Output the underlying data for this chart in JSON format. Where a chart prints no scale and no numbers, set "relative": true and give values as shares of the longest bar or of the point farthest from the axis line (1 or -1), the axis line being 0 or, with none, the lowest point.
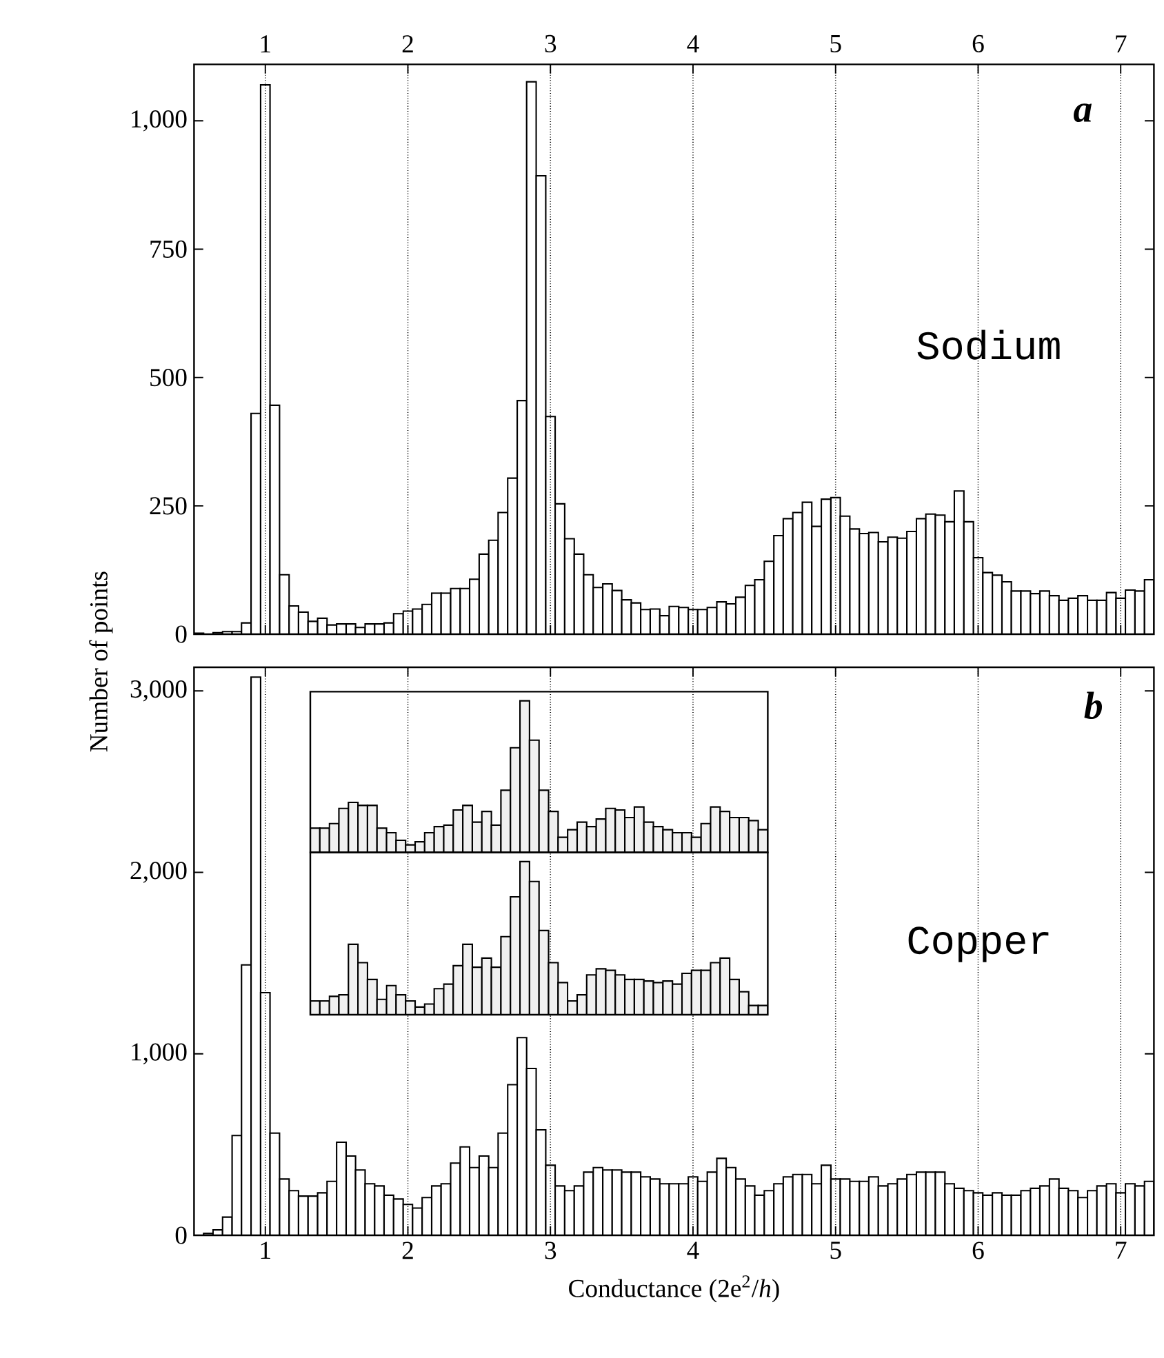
{
  "chart_data": [
    {
      "type": "histogram",
      "color": "#ffffff",
      "xlim": [
        0.5,
        7.233
      ],
      "ylim": [
        0,
        1110
      ],
      "xticks": [
        1,
        2,
        3,
        4,
        5,
        6,
        7
      ],
      "x2lim": [
        0.5,
        7.233
      ],
      "x2ticks": [
        1,
        2,
        3,
        4,
        5,
        6,
        7
      ],
      "tick_labels": "y",
      "grid": "x",
      "yticks": [
        0,
        250,
        500,
        750,
        {
          "value": 1000,
          "label": "1,000"
        }
      ],
      "annotations": [
        "a",
        "Sodium"
      ],
      "bins": [
        0.5,
        0.567,
        0.633,
        0.7,
        0.767,
        0.833,
        0.9,
        0.967,
        1.033,
        1.1,
        1.167,
        1.233,
        1.3,
        1.367,
        1.433,
        1.5,
        1.567,
        1.633,
        1.7,
        1.767,
        1.833,
        1.9,
        1.967,
        2.033,
        2.1,
        2.167,
        2.233,
        2.3,
        2.367,
        2.433,
        2.5,
        2.567,
        2.633,
        2.7,
        2.767,
        2.833,
        2.9,
        2.967,
        3.033,
        3.1,
        3.167,
        3.233,
        3.3,
        3.367,
        3.433,
        3.5,
        3.567,
        3.633,
        3.7,
        3.767,
        3.833,
        3.9,
        3.967,
        4.033,
        4.1,
        4.167,
        4.233,
        4.3,
        4.367,
        4.433,
        4.5,
        4.567,
        4.633,
        4.7,
        4.767,
        4.833,
        4.9,
        4.967,
        5.033,
        5.1,
        5.167,
        5.233,
        5.3,
        5.367,
        5.433,
        5.5,
        5.567,
        5.633,
        5.7,
        5.767,
        5.833,
        5.9,
        5.967,
        6.033,
        6.1,
        6.167,
        6.233,
        6.3,
        6.367,
        6.433,
        6.5,
        6.567,
        6.633,
        6.7,
        6.767,
        6.833,
        6.9,
        6.967,
        7.033,
        7.1,
        7.167,
        7.233
      ],
      "values": [
        2,
        null,
        3,
        5,
        5,
        22,
        430,
        1070,
        446,
        116,
        55,
        43,
        25,
        31,
        18,
        20,
        20,
        13,
        20,
        20,
        22,
        40,
        45,
        49,
        58,
        80,
        80,
        89,
        89,
        107,
        156,
        183,
        237,
        304,
        455,
        1076,
        893,
        424,
        254,
        186,
        156,
        116,
        91,
        98,
        85,
        67,
        61,
        48,
        49,
        36,
        54,
        52,
        48,
        48,
        52,
        63,
        59,
        72,
        95,
        106,
        142,
        192,
        225,
        237,
        257,
        210,
        263,
        266,
        230,
        205,
        196,
        198,
        180,
        189,
        187,
        200,
        225,
        234,
        232,
        219,
        279,
        219,
        149,
        120,
        115,
        102,
        84,
        84,
        79,
        84,
        75,
        66,
        70,
        75,
        66,
        66,
        81,
        70,
        86,
        84,
        106
      ]
    },
    {
      "type": "histogram",
      "color": "#ffffff",
      "xlim": [
        0.5,
        7.233
      ],
      "ylim": [
        0,
        3130
      ],
      "xticks": [
        1,
        2,
        3,
        4,
        5,
        6,
        7
      ],
      "grid": "x",
      "yticks": [
        0,
        {
          "value": 1000,
          "label": "1,000"
        },
        {
          "value": 2000,
          "label": "2,000"
        },
        {
          "value": 3000,
          "label": "3,000"
        }
      ],
      "xlabel": "Conductance (2e$^{2}$/*h*)",
      "ylabel": "Number of points",
      "annotations": [
        "b",
        "Copper"
      ],
      "bins": [
        0.5,
        0.567,
        0.633,
        0.7,
        0.767,
        0.833,
        0.9,
        0.967,
        1.033,
        1.1,
        1.167,
        1.233,
        1.3,
        1.367,
        1.433,
        1.5,
        1.567,
        1.633,
        1.7,
        1.767,
        1.833,
        1.9,
        1.967,
        2.033,
        2.1,
        2.167,
        2.233,
        2.3,
        2.367,
        2.433,
        2.5,
        2.567,
        2.633,
        2.7,
        2.767,
        2.833,
        2.9,
        2.967,
        3.033,
        3.1,
        3.167,
        3.233,
        3.3,
        3.367,
        3.433,
        3.5,
        3.567,
        3.633,
        3.7,
        3.767,
        3.833,
        3.9,
        3.967,
        4.033,
        4.1,
        4.167,
        4.233,
        4.3,
        4.367,
        4.433,
        4.5,
        4.567,
        4.633,
        4.7,
        4.767,
        4.833,
        4.9,
        4.967,
        5.033,
        5.1,
        5.167,
        5.233,
        5.3,
        5.367,
        5.433,
        5.5,
        5.567,
        5.633,
        5.7,
        5.767,
        5.833,
        5.9,
        5.967,
        6.033,
        6.1,
        6.167,
        6.233,
        6.3,
        6.367,
        6.433,
        6.5,
        6.567,
        6.633,
        6.7,
        6.767,
        6.833,
        6.9,
        6.967,
        7.033,
        7.1,
        7.167,
        7.233
      ],
      "values": [
        null,
        10,
        30,
        100,
        550,
        1490,
        3076,
        1337,
        563,
        310,
        246,
        216,
        216,
        234,
        297,
        513,
        437,
        360,
        284,
        272,
        221,
        200,
        170,
        150,
        208,
        272,
        284,
        398,
        487,
        373,
        437,
        373,
        563,
        830,
        1089,
        919,
        581,
        386,
        272,
        246,
        272,
        348,
        373,
        360,
        360,
        348,
        348,
        322,
        310,
        284,
        284,
        284,
        322,
        297,
        348,
        424,
        373,
        310,
        272,
        221,
        246,
        284,
        322,
        335,
        335,
        284,
        386,
        310,
        310,
        297,
        297,
        322,
        272,
        284,
        310,
        335,
        348,
        348,
        348,
        284,
        259,
        246,
        234,
        221,
        234,
        221,
        221,
        246,
        259,
        272,
        310,
        259,
        246,
        208,
        246,
        272,
        284,
        234,
        284,
        272,
        297
      ]
    },
    {
      "type": "bar",
      "color": "#f0f0f0",
      "relative": true,
      "tick_labels": false,
      "categories": [
        null,
        null,
        null,
        null,
        null,
        null,
        null,
        null,
        null,
        null,
        null,
        null,
        null,
        null,
        null,
        null,
        null,
        null,
        null,
        null,
        null,
        null,
        null,
        null,
        null,
        null,
        null,
        null,
        null,
        null,
        null,
        null,
        null,
        null,
        null,
        null,
        null,
        null,
        null,
        null,
        null,
        null,
        null,
        null,
        null,
        null,
        null,
        null
      ],
      "values": [
        0.16,
        0.16,
        0.19,
        0.29,
        0.33,
        0.31,
        0.31,
        0.16,
        0.13,
        0.08,
        0.05,
        0.07,
        0.13,
        0.17,
        0.18,
        0.28,
        0.31,
        0.2,
        0.27,
        0.18,
        0.41,
        0.69,
        1,
        0.74,
        0.41,
        0.27,
        0.1,
        0.15,
        0.2,
        0.17,
        0.22,
        0.29,
        0.28,
        0.23,
        0.3,
        0.2,
        0.17,
        0.15,
        0.13,
        0.13,
        0.1,
        0.19,
        0.3,
        0.27,
        0.23,
        0.23,
        0.21,
        0.15
      ]
    },
    {
      "type": "bar",
      "color": "#f0f0f0",
      "relative": true,
      "tick_labels": false,
      "categories": [
        null,
        null,
        null,
        null,
        null,
        null,
        null,
        null,
        null,
        null,
        null,
        null,
        null,
        null,
        null,
        null,
        null,
        null,
        null,
        null,
        null,
        null,
        null,
        null,
        null,
        null,
        null,
        null,
        null,
        null,
        null,
        null,
        null,
        null,
        null,
        null,
        null,
        null,
        null,
        null,
        null,
        null,
        null,
        null,
        null,
        null,
        null,
        null
      ],
      "values": [
        0.09,
        0.09,
        0.12,
        0.13,
        0.46,
        0.34,
        0.23,
        0.1,
        0.19,
        0.13,
        0.09,
        0.05,
        0.07,
        0.17,
        0.2,
        0.32,
        0.46,
        0.31,
        0.37,
        0.31,
        0.51,
        0.77,
        1,
        0.87,
        0.55,
        0.34,
        0.21,
        0.09,
        0.13,
        0.26,
        0.3,
        0.29,
        0.26,
        0.23,
        0.23,
        0.22,
        0.21,
        0.22,
        0.2,
        0.27,
        0.29,
        0.29,
        0.34,
        0.37,
        0.23,
        0.15,
        0.06,
        0.06
      ]
    }
  ]
}
